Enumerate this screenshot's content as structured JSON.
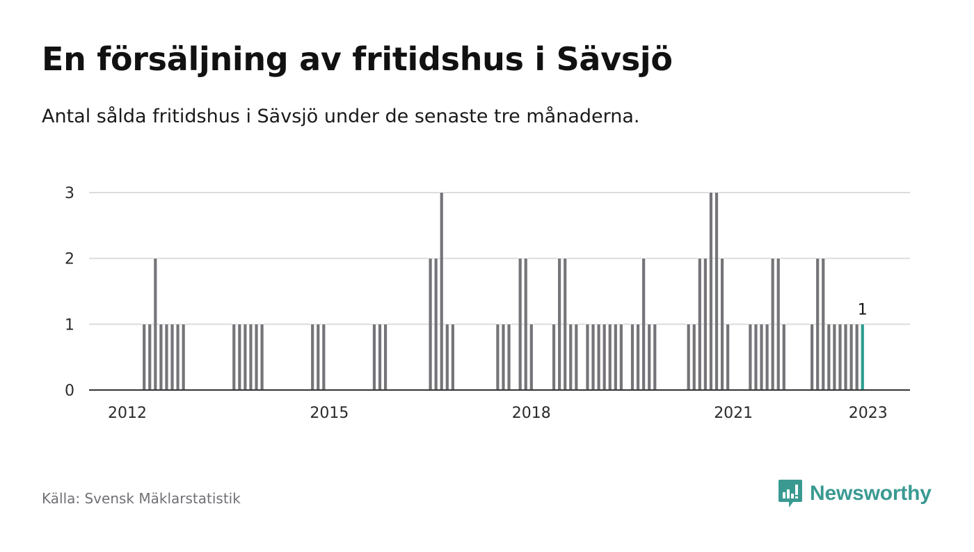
{
  "header": {
    "title": "En försäljning av fritidshus i Sävsjö",
    "subtitle": "Antal sålda fritidshus i Sävsjö under de senaste tre månaderna."
  },
  "footer": {
    "source": "Källa: Svensk Mäklarstatistik",
    "brand": "Newsworthy"
  },
  "colors": {
    "bar": "#757579",
    "highlight": "#2a9d8f",
    "grid": "#dcdcdc",
    "axis": "#333333",
    "brand": "#3a9a92"
  },
  "icons": {
    "logo": "bar-chart-speech-bubble-icon"
  },
  "chart_data": {
    "type": "bar",
    "x_ticks": [
      "2012",
      "2015",
      "2018",
      "2021",
      "2023"
    ],
    "y_ticks": [
      0,
      1,
      2,
      3
    ],
    "ylim": [
      0,
      3
    ],
    "xlim": [
      "2011-06",
      "2023-06"
    ],
    "grid": true,
    "highlight_label": "1",
    "x": [
      "2012-04",
      "2012-05",
      "2012-06",
      "2012-07",
      "2012-08",
      "2012-09",
      "2012-10",
      "2012-11",
      "2013-08",
      "2013-09",
      "2013-10",
      "2013-11",
      "2013-12",
      "2014-01",
      "2014-10",
      "2014-11",
      "2014-12",
      "2015-09",
      "2015-10",
      "2015-11",
      "2016-07",
      "2016-08",
      "2016-09",
      "2016-10",
      "2016-11",
      "2017-07",
      "2017-08",
      "2017-09",
      "2017-11",
      "2017-12",
      "2018-01",
      "2018-05",
      "2018-06",
      "2018-07",
      "2018-08",
      "2018-09",
      "2018-11",
      "2018-12",
      "2019-01",
      "2019-02",
      "2019-03",
      "2019-04",
      "2019-05",
      "2019-07",
      "2019-08",
      "2019-09",
      "2019-10",
      "2019-11",
      "2020-05",
      "2020-06",
      "2020-07",
      "2020-08",
      "2020-09",
      "2020-10",
      "2020-11",
      "2020-12",
      "2021-04",
      "2021-05",
      "2021-06",
      "2021-07",
      "2021-08",
      "2021-09",
      "2021-10",
      "2022-03",
      "2022-04",
      "2022-05",
      "2022-06",
      "2022-07",
      "2022-08",
      "2022-09",
      "2022-10",
      "2022-11",
      "2022-12"
    ],
    "values": [
      1,
      1,
      2,
      1,
      1,
      1,
      1,
      1,
      1,
      1,
      1,
      1,
      1,
      1,
      1,
      1,
      1,
      1,
      1,
      1,
      2,
      2,
      3,
      1,
      1,
      1,
      1,
      1,
      2,
      2,
      1,
      1,
      2,
      2,
      1,
      1,
      1,
      1,
      1,
      1,
      1,
      1,
      1,
      1,
      1,
      2,
      1,
      1,
      1,
      1,
      2,
      2,
      3,
      3,
      2,
      1,
      1,
      1,
      1,
      1,
      2,
      2,
      1,
      1,
      2,
      2,
      1,
      1,
      1,
      1,
      1,
      1,
      1
    ],
    "highlight": "2022-12"
  }
}
